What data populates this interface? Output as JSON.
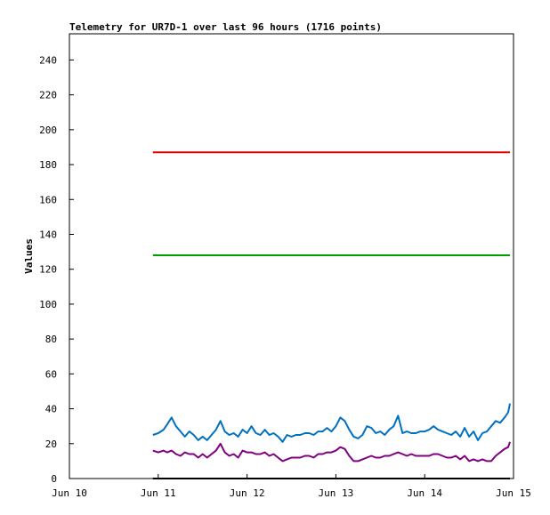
{
  "chart_data": {
    "type": "line",
    "title": "Telemetry for UR7D-1 over last 96 hours (1716 points)",
    "xlabel": "",
    "ylabel": "Values",
    "x_ticks": [
      "Jun 10",
      "Jun 11",
      "Jun 12",
      "Jun 13",
      "Jun 14",
      "Jun 15"
    ],
    "x_domain": [
      0,
      5
    ],
    "ylim": [
      0,
      255
    ],
    "y_ticks": [
      0,
      20,
      40,
      60,
      80,
      100,
      120,
      140,
      160,
      180,
      200,
      220,
      240
    ],
    "grid": false,
    "series": [
      {
        "color": "#e00000",
        "x": [
          0.94,
          4.96
        ],
        "values": [
          187,
          187
        ]
      },
      {
        "color": "#00a000",
        "x": [
          0.94,
          4.96
        ],
        "values": [
          128,
          128
        ]
      },
      {
        "color": "#0070c0",
        "x": [
          0.94,
          1.0,
          1.06,
          1.1,
          1.15,
          1.2,
          1.25,
          1.3,
          1.35,
          1.4,
          1.45,
          1.5,
          1.55,
          1.6,
          1.65,
          1.7,
          1.75,
          1.8,
          1.85,
          1.9,
          1.95,
          2.0,
          2.05,
          2.1,
          2.15,
          2.2,
          2.25,
          2.3,
          2.35,
          2.4,
          2.45,
          2.5,
          2.55,
          2.6,
          2.65,
          2.7,
          2.75,
          2.8,
          2.85,
          2.9,
          2.95,
          3.0,
          3.05,
          3.1,
          3.15,
          3.2,
          3.25,
          3.3,
          3.35,
          3.4,
          3.45,
          3.5,
          3.55,
          3.6,
          3.65,
          3.7,
          3.75,
          3.8,
          3.85,
          3.9,
          3.95,
          4.0,
          4.05,
          4.1,
          4.15,
          4.2,
          4.25,
          4.3,
          4.35,
          4.4,
          4.45,
          4.5,
          4.55,
          4.6,
          4.65,
          4.7,
          4.75,
          4.8,
          4.85,
          4.9,
          4.94,
          4.96
        ],
        "values": [
          25,
          26,
          28,
          31,
          35,
          30,
          27,
          24,
          27,
          25,
          22,
          24,
          22,
          25,
          28,
          33,
          27,
          25,
          26,
          24,
          28,
          26,
          30,
          26,
          25,
          28,
          25,
          26,
          24,
          21,
          25,
          24,
          25,
          25,
          26,
          26,
          25,
          27,
          27,
          29,
          27,
          30,
          35,
          33,
          28,
          24,
          23,
          25,
          30,
          29,
          26,
          27,
          25,
          28,
          30,
          36,
          26,
          27,
          26,
          26,
          27,
          27,
          28,
          30,
          28,
          27,
          26,
          25,
          27,
          24,
          29,
          24,
          27,
          22,
          26,
          27,
          30,
          33,
          32,
          35,
          38,
          43
        ]
      },
      {
        "color": "#800080",
        "x": [
          0.94,
          1.0,
          1.06,
          1.1,
          1.15,
          1.2,
          1.25,
          1.3,
          1.35,
          1.4,
          1.45,
          1.5,
          1.55,
          1.6,
          1.65,
          1.7,
          1.75,
          1.8,
          1.85,
          1.9,
          1.95,
          2.0,
          2.05,
          2.1,
          2.15,
          2.2,
          2.25,
          2.3,
          2.35,
          2.4,
          2.45,
          2.5,
          2.55,
          2.6,
          2.65,
          2.7,
          2.75,
          2.8,
          2.85,
          2.9,
          2.95,
          3.0,
          3.05,
          3.1,
          3.15,
          3.2,
          3.25,
          3.3,
          3.35,
          3.4,
          3.45,
          3.5,
          3.55,
          3.6,
          3.65,
          3.7,
          3.75,
          3.8,
          3.85,
          3.9,
          3.95,
          4.0,
          4.05,
          4.1,
          4.15,
          4.2,
          4.25,
          4.3,
          4.35,
          4.4,
          4.45,
          4.5,
          4.55,
          4.6,
          4.65,
          4.7,
          4.75,
          4.8,
          4.85,
          4.9,
          4.94,
          4.96
        ],
        "values": [
          16,
          15,
          16,
          15,
          16,
          14,
          13,
          15,
          14,
          14,
          12,
          14,
          12,
          14,
          16,
          20,
          15,
          13,
          14,
          12,
          16,
          15,
          15,
          14,
          14,
          15,
          13,
          14,
          12,
          10,
          11,
          12,
          12,
          12,
          13,
          13,
          12,
          14,
          14,
          15,
          15,
          16,
          18,
          17,
          13,
          10,
          10,
          11,
          12,
          13,
          12,
          12,
          13,
          13,
          14,
          15,
          14,
          13,
          14,
          13,
          13,
          13,
          13,
          14,
          14,
          13,
          12,
          12,
          13,
          11,
          13,
          10,
          11,
          10,
          11,
          10,
          10,
          13,
          15,
          17,
          18,
          21
        ]
      }
    ]
  }
}
